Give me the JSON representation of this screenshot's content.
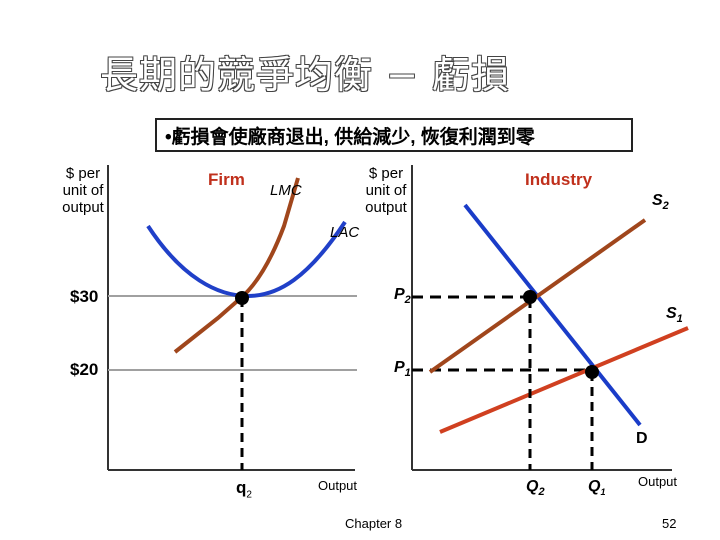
{
  "slide": {
    "title": "長期的競爭均衡 − 虧損",
    "bullet": "•虧損會使廠商退出, 供給減少, 恢復利潤到零",
    "footer": "Chapter 8",
    "page_number": "52"
  },
  "firm_graph": {
    "y_axis_label": "$ per\nunit of\noutput",
    "header": "Firm",
    "lmc_label": "LMC",
    "lac_label": "LAC",
    "price_30": "$30",
    "price_20": "$20",
    "q_label": "q",
    "q_sub": "2",
    "x_axis_label": "Output"
  },
  "industry_graph": {
    "y_axis_label": "$ per\nunit of\noutput",
    "header": "Industry",
    "s2_label": "S",
    "s2_sub": "2",
    "s1_label": "S",
    "s1_sub": "1",
    "p2_label": "P",
    "p2_sub": "2",
    "p1_label": "P",
    "p1_sub": "1",
    "d_label": "D",
    "q2_label": "Q",
    "q2_sub": "2",
    "q1_label": "Q",
    "q1_sub": "1",
    "x_axis_label": "Output"
  },
  "colors": {
    "lmc": "#a0461c",
    "lac": "#2040c8",
    "demand": "#1a3cc8",
    "s1": "#d04020",
    "s2": "#a0461c",
    "price_line": "#a0a0a0"
  }
}
